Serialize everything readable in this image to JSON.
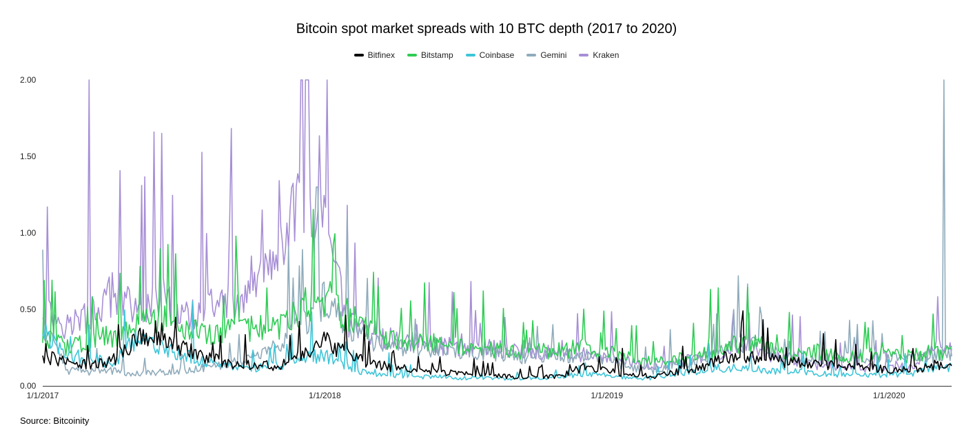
{
  "chart_data": {
    "type": "line",
    "title": "Bitcoin spot market spreads with 10 BTC depth (2017 to 2020)",
    "xlabel": "",
    "ylabel": "",
    "ylim": [
      0,
      2.0
    ],
    "y_ticks": [
      "0.00",
      "0.50",
      "1.00",
      "1.50",
      "2.00"
    ],
    "x_ticks": [
      "1/1/2017",
      "1/1/2018",
      "1/1/2019",
      "1/1/2020"
    ],
    "grid": false,
    "legend_position": "top",
    "x": [
      "2017-01-01",
      "2017-02-01",
      "2017-03-01",
      "2017-04-01",
      "2017-05-01",
      "2017-06-01",
      "2017-07-01",
      "2017-08-01",
      "2017-09-01",
      "2017-10-01",
      "2017-11-01",
      "2017-12-01",
      "2018-01-01",
      "2018-02-01",
      "2018-03-01",
      "2018-04-01",
      "2018-05-01",
      "2018-06-01",
      "2018-07-01",
      "2018-08-01",
      "2018-09-01",
      "2018-10-01",
      "2018-11-01",
      "2018-12-01",
      "2019-01-01",
      "2019-02-01",
      "2019-03-01",
      "2019-04-01",
      "2019-05-01",
      "2019-06-01",
      "2019-07-01",
      "2019-08-01",
      "2019-09-01",
      "2019-10-01",
      "2019-11-01",
      "2019-12-01",
      "2020-01-01",
      "2020-02-01",
      "2020-03-01"
    ],
    "series": [
      {
        "name": "Bitfinex",
        "color": "#000000",
        "values": [
          0.2,
          0.15,
          0.14,
          0.16,
          0.3,
          0.35,
          0.25,
          0.18,
          0.15,
          0.14,
          0.13,
          0.22,
          0.3,
          0.2,
          0.14,
          0.12,
          0.1,
          0.09,
          0.08,
          0.07,
          0.06,
          0.06,
          0.06,
          0.12,
          0.1,
          0.07,
          0.06,
          0.09,
          0.12,
          0.18,
          0.2,
          0.17,
          0.15,
          0.14,
          0.13,
          0.12,
          0.11,
          0.1,
          0.14
        ]
      },
      {
        "name": "Bitstamp",
        "color": "#2ecc54",
        "values": [
          0.3,
          0.25,
          0.3,
          0.32,
          0.4,
          0.45,
          0.38,
          0.33,
          0.35,
          0.38,
          0.36,
          0.5,
          0.6,
          0.45,
          0.35,
          0.3,
          0.28,
          0.27,
          0.25,
          0.24,
          0.22,
          0.22,
          0.23,
          0.25,
          0.22,
          0.18,
          0.15,
          0.17,
          0.2,
          0.25,
          0.28,
          0.25,
          0.22,
          0.22,
          0.2,
          0.2,
          0.2,
          0.2,
          0.22
        ]
      },
      {
        "name": "Coinbase",
        "color": "#3ec5d8",
        "values": [
          0.35,
          0.2,
          0.18,
          0.15,
          0.3,
          0.25,
          0.2,
          0.15,
          0.13,
          0.12,
          0.13,
          0.18,
          0.2,
          0.12,
          0.08,
          0.07,
          0.06,
          0.06,
          0.05,
          0.05,
          0.05,
          0.05,
          0.06,
          0.08,
          0.07,
          0.05,
          0.05,
          0.08,
          0.1,
          0.12,
          0.12,
          0.1,
          0.09,
          0.08,
          0.07,
          0.07,
          0.07,
          0.08,
          0.12
        ]
      },
      {
        "name": "Gemini",
        "color": "#8fabbb",
        "values": [
          0.4,
          0.1,
          0.09,
          0.1,
          0.08,
          0.09,
          0.1,
          0.12,
          0.15,
          0.2,
          0.25,
          0.4,
          0.55,
          0.4,
          0.3,
          0.25,
          0.25,
          0.24,
          0.22,
          0.22,
          0.2,
          0.18,
          0.2,
          0.2,
          0.18,
          0.12,
          0.1,
          0.14,
          0.18,
          0.22,
          0.3,
          0.22,
          0.18,
          0.18,
          0.17,
          0.2,
          0.18,
          0.18,
          0.2
        ]
      },
      {
        "name": "Kraken",
        "color": "#a78fd6",
        "values": [
          0.5,
          0.4,
          0.45,
          0.6,
          0.5,
          0.6,
          0.45,
          0.5,
          0.55,
          0.6,
          0.8,
          1.3,
          1.0,
          0.4,
          0.35,
          0.3,
          0.28,
          0.26,
          0.25,
          0.25,
          0.23,
          0.22,
          0.22,
          0.2,
          0.18,
          0.15,
          0.12,
          0.15,
          0.18,
          0.2,
          0.25,
          0.2,
          0.17,
          0.14,
          0.13,
          0.12,
          0.12,
          0.12,
          0.25
        ]
      }
    ],
    "spikes": [
      {
        "series": "Kraken",
        "x": "2017-03-02",
        "value": 2.0
      },
      {
        "series": "Kraken",
        "x": "2017-05-25",
        "value": 1.66
      },
      {
        "series": "Kraken",
        "x": "2017-01-07",
        "value": 1.17
      },
      {
        "series": "Kraken",
        "x": "2017-12-10",
        "value": 2.0
      },
      {
        "series": "Kraken",
        "x": "2018-01-04",
        "value": 2.0
      },
      {
        "series": "Gemini",
        "x": "2017-12-22",
        "value": 1.3
      },
      {
        "series": "Gemini",
        "x": "2019-06-20",
        "value": 0.72
      },
      {
        "series": "Gemini",
        "x": "2020-03-12",
        "value": 2.0
      }
    ],
    "source": "Source: Bitcoinity"
  }
}
